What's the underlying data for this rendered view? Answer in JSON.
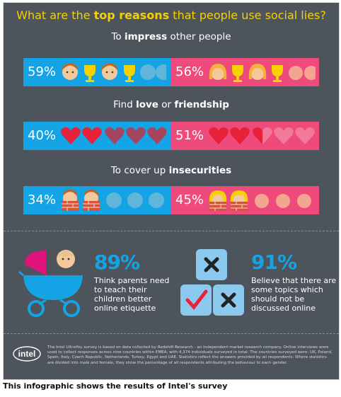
{
  "title": {
    "prefix": "What are the ",
    "bold": "top reasons",
    "suffix": " that people use social lies?"
  },
  "sections": [
    {
      "label_prefix": "To ",
      "label_bold": "impress",
      "label_suffix": " other people",
      "male_pct": "59%",
      "female_pct": "56%",
      "male_value": 59,
      "female_value": 56,
      "icon": "trophy"
    },
    {
      "label_prefix": "Find ",
      "label_bold": "love",
      "label_suffix": " or ",
      "label_bold2": "friendship",
      "male_pct": "40%",
      "female_pct": "51%",
      "male_value": 40,
      "female_value": 51,
      "icon": "heart"
    },
    {
      "label_prefix": "To cover up ",
      "label_bold": "insecurities",
      "label_suffix": "",
      "male_pct": "34%",
      "female_pct": "45%",
      "male_value": 34,
      "female_value": 45,
      "icon": "wall"
    }
  ],
  "stat1": {
    "value": "89%",
    "text_lines": [
      "Think parents need",
      "to teach their",
      "children better",
      "online etiquette"
    ]
  },
  "stat2": {
    "value": "91%",
    "text_lines": [
      "Believe that there are",
      "some topics which",
      "should not be",
      "discussed online"
    ]
  },
  "logo_text": "intel",
  "footer": "The Intel UltraYou survey is based on data collected by Redshift Research - an independent market research company. Online interviews were used to collect responses across nine countries within EMEA, with 4,374 individuals surveyed in total. The countries surveyed were: UK, Poland, Spain, Italy, Czech Republic, Netherlands, Turkey, Egypt and UAE. Statistics reflect the answers provided by all respondents. Where statistics are divided into male and female, they show the percentage of all respondents attributing the behaviour to each gender.",
  "caption": "This infographic shows the results of Intel's survey",
  "colors": {
    "background": "#4e545c",
    "male": "#14a4e6",
    "female": "#ef4a7c",
    "title": "#f5d100",
    "heart": "#e8213a"
  }
}
